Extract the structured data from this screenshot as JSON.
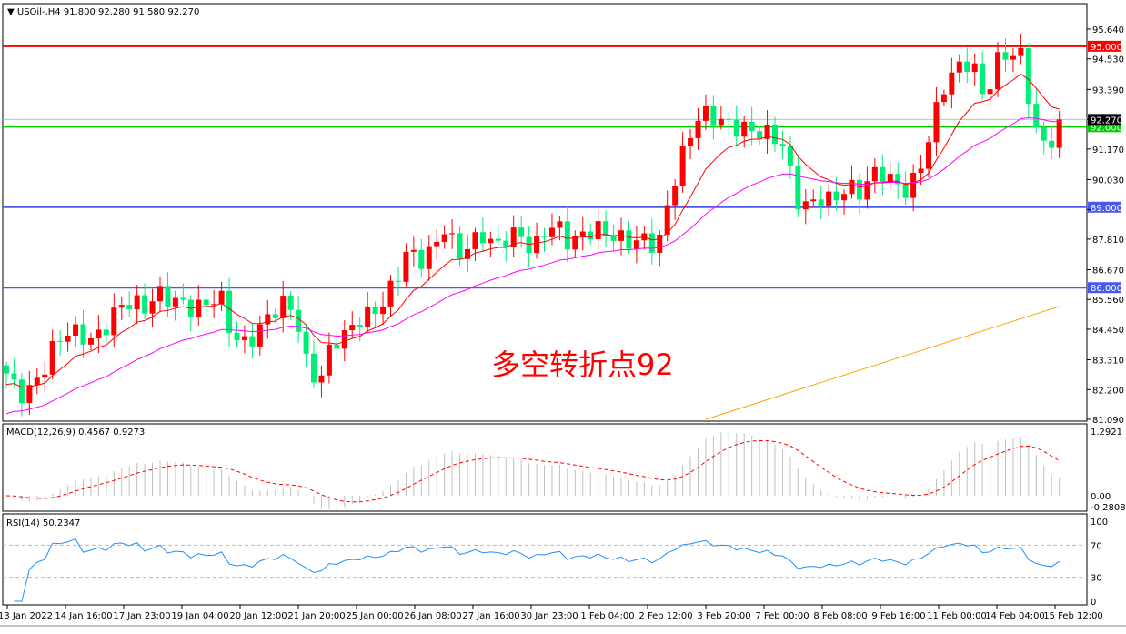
{
  "header": {
    "symbol": "USOil-,H4",
    "ohlc": "91.800 92.280 91.580 92.270"
  },
  "annotation": "多空转折点92",
  "colors": {
    "bull": "#ff0000",
    "bear": "#00ee77",
    "ma_fast": "#ff0000",
    "ma_mid": "#ff00ff",
    "ma_slow": "#ffa500",
    "macd_hist": "#c0c0c0",
    "macd_signal": "#ff0000",
    "rsi": "#1e90ff"
  },
  "chart_data": {
    "type": "candlestick",
    "ylim": [
      81.09,
      95.64
    ],
    "price_ticks": [
      "95.640",
      "94.530",
      "93.390",
      "92.270",
      "91.170",
      "90.030",
      "88.910",
      "87.810",
      "86.670",
      "85.560",
      "84.450",
      "83.310",
      "82.200",
      "81.090"
    ],
    "levels": [
      {
        "label": "95.000",
        "value": 95.0,
        "color": "#ff0000"
      },
      {
        "label": "92.000",
        "value": 92.0,
        "color": "#00cc00"
      },
      {
        "label": "89.000",
        "value": 89.0,
        "color": "#4a5ae8"
      },
      {
        "label": "86.000",
        "value": 86.0,
        "color": "#4a5ae8"
      }
    ],
    "current_price": {
      "label": "92.270",
      "value": 92.27
    },
    "closes": [
      82.8,
      82.0,
      82.2,
      83.0,
      84.0,
      84.4,
      84.2,
      84.0,
      84.6,
      85.3,
      85.5,
      85.2,
      85.8,
      85.6,
      85.4,
      85.2,
      85.4,
      85.8,
      84.2,
      83.9,
      84.3,
      85.0,
      85.4,
      85.2,
      83.0,
      82.5,
      84.0,
      84.2,
      84.8,
      85.0,
      85.4,
      86.2,
      87.4,
      87.0,
      87.4,
      88.3,
      87.2,
      87.6,
      88.0,
      87.5,
      87.9,
      88.0,
      87.3,
      88.2,
      88.3,
      87.6,
      88.0,
      88.2,
      88.0,
      87.8,
      87.7,
      87.8,
      87.5,
      89.6,
      91.0,
      92.3,
      92.5,
      92.2,
      92.0,
      91.9,
      91.8,
      91.7,
      91.3,
      89.3,
      89.0,
      89.4,
      89.2,
      89.8,
      89.5,
      90.2,
      90.3,
      89.8,
      89.6,
      90.6,
      92.3,
      93.8,
      94.2,
      94.5,
      93.0,
      94.4,
      94.8,
      94.6,
      92.0,
      91.1,
      92.27
    ],
    "ma_slow": {
      "start": 81.09,
      "end": 85.3
    },
    "x_ticks": [
      "13 Jan 2022",
      "14 Jan 16:00",
      "17 Jan 23:00",
      "19 Jan 04:00",
      "20 Jan 12:00",
      "21 Jan 20:00",
      "25 Jan 00:00",
      "26 Jan 08:00",
      "27 Jan 16:00",
      "30 Jan 23:00",
      "1 Feb 04:00",
      "2 Feb 12:00",
      "3 Feb 20:00",
      "7 Feb 00:00",
      "8 Feb 08:00",
      "9 Feb 16:00",
      "11 Feb 00:00",
      "14 Feb 04:00",
      "15 Feb 12:00"
    ]
  },
  "macd": {
    "label": "MACD(12,26,9) 0.4567 0.9273",
    "top": "1.2921",
    "zero": "0.00",
    "bottom": "-0.2808"
  },
  "rsi": {
    "label": "RSI(14) 50.2347",
    "ticks": [
      "100",
      "70",
      "30",
      "0"
    ]
  }
}
